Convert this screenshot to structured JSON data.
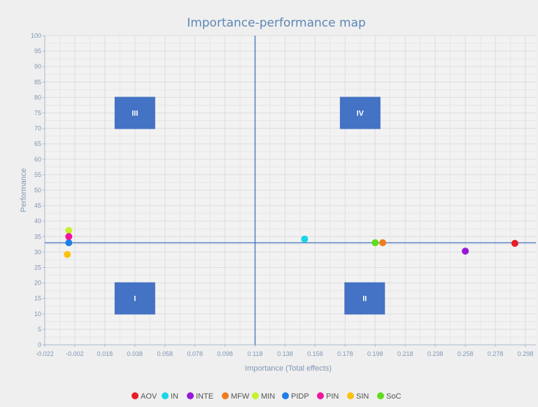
{
  "chart_data": {
    "type": "scatter",
    "title": "Importance-performance map",
    "xlabel": "Importance (Total effects)",
    "ylabel": "Performance",
    "xlim": [
      -0.022,
      0.305
    ],
    "ylim": [
      0,
      100
    ],
    "x_ticks": [
      "-0.022",
      "-0.002",
      "0.018",
      "0.038",
      "0.058",
      "0.078",
      "0.098",
      "0.118",
      "0.138",
      "0.158",
      "0.178",
      "0.198",
      "0.218",
      "0.238",
      "0.258",
      "0.278",
      "0.298"
    ],
    "y_ticks": [
      "0",
      "5",
      "10",
      "15",
      "20",
      "25",
      "30",
      "35",
      "40",
      "45",
      "50",
      "55",
      "60",
      "65",
      "70",
      "75",
      "80",
      "85",
      "90",
      "95",
      "100"
    ],
    "grid": true,
    "legend_position": "bottom",
    "reference_lines": {
      "x": 0.118,
      "y": 33
    },
    "quadrants": [
      {
        "label": "III",
        "x": 0.038,
        "y": 75
      },
      {
        "label": "IV",
        "x": 0.188,
        "y": 75
      },
      {
        "label": "I",
        "x": 0.038,
        "y": 15
      },
      {
        "label": "II",
        "x": 0.191,
        "y": 15
      }
    ],
    "series": [
      {
        "name": "AOV",
        "color": "#ea1c24",
        "x": 0.291,
        "y": 32.8
      },
      {
        "name": "IN",
        "color": "#17d7e6",
        "x": 0.151,
        "y": 34.2
      },
      {
        "name": "INTE",
        "color": "#9a17d8",
        "x": 0.258,
        "y": 30.3
      },
      {
        "name": "MFW",
        "color": "#f07c1e",
        "x": 0.203,
        "y": 33.0
      },
      {
        "name": "MIN",
        "color": "#c5f22a",
        "x": -0.006,
        "y": 37.0
      },
      {
        "name": "PIDP",
        "color": "#1f7fe6",
        "x": -0.006,
        "y": 33.0
      },
      {
        "name": "PIN",
        "color": "#f0159e",
        "x": -0.006,
        "y": 35.0
      },
      {
        "name": "SIN",
        "color": "#fcc10f",
        "x": -0.007,
        "y": 29.2
      },
      {
        "name": "SoC",
        "color": "#5fdd1c",
        "x": 0.198,
        "y": 33.0
      }
    ]
  }
}
